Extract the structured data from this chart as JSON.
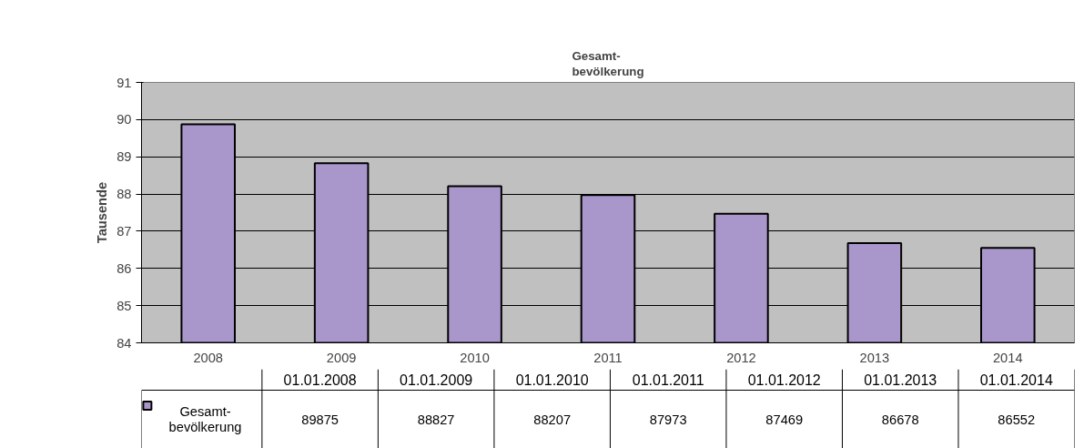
{
  "chart_data": {
    "type": "bar",
    "title": "Gesamt-\nbevölkerung",
    "ylabel": "Tausende",
    "categories": [
      "2008",
      "2009",
      "2010",
      "2011",
      "2012",
      "2013",
      "2014"
    ],
    "series": [
      {
        "name": "Gesamt-\nbevölkerung",
        "color": "#a997cc",
        "values": [
          89.875,
          88.827,
          88.207,
          87.973,
          87.469,
          86.678,
          86.552
        ]
      }
    ],
    "annotations": [
      "01.01.2008",
      "01.01.2009",
      "01.01.2010",
      "01.01.2011",
      "01.01.2012",
      "01.01.2013",
      "01.01.2014",
      "89875",
      "88827",
      "88207",
      "87973",
      "87469",
      "86678",
      "86552"
    ],
    "ylim": [
      84,
      91
    ],
    "yticks": [
      84,
      85,
      86,
      87,
      88,
      89,
      90,
      91
    ],
    "grid": "y",
    "legend": "bottom"
  }
}
